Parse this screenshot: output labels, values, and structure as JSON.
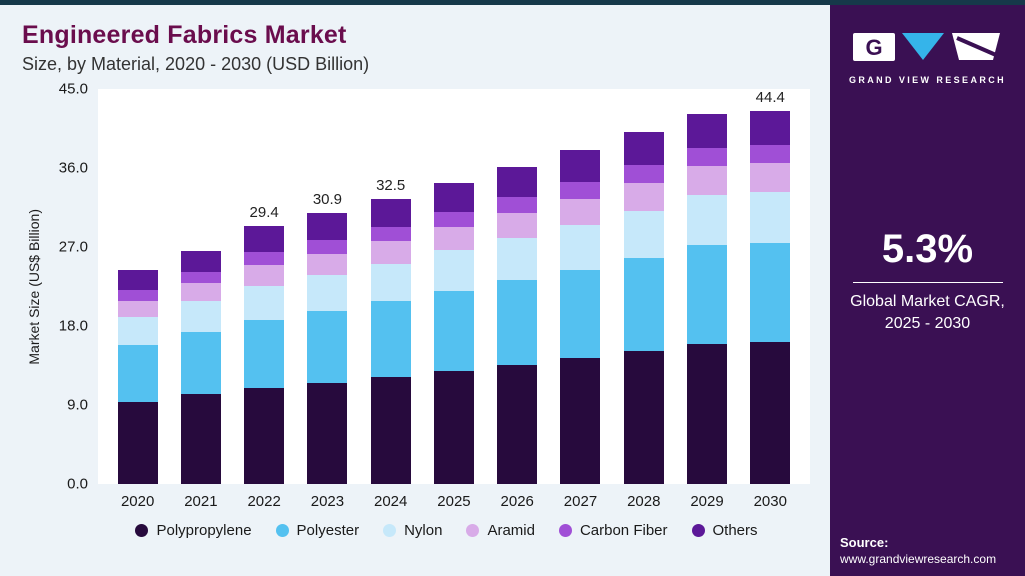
{
  "header": {
    "title": "Engineered Fabrics Market",
    "subtitle": "Size, by Material, 2020 - 2030 (USD Billion)"
  },
  "colors": {
    "title_accent": "#6a0d4d",
    "sidebar_bg": "#3a1053",
    "top_border": "#16394a",
    "panel_bg": "#edf3f8",
    "plot_bg": "#ffffff",
    "logo_triangle": "#35b4ea"
  },
  "chart_data": {
    "type": "bar",
    "stacked": true,
    "title": "Engineered Fabrics Market Size, by Material, 2020 - 2030 (USD Billion)",
    "xlabel": "",
    "ylabel": "Market Size (US$ Billion)",
    "ylim": [
      0,
      45
    ],
    "y_ticks": [
      0,
      9,
      18,
      27,
      36,
      45
    ],
    "grid": false,
    "legend_position": "bottom",
    "categories": [
      "2020",
      "2021",
      "2022",
      "2023",
      "2024",
      "2025",
      "2026",
      "2027",
      "2028",
      "2029",
      "2030"
    ],
    "series": [
      {
        "name": "Polypropylene",
        "color": "#270a3d",
        "values": [
          9.3,
          10.2,
          10.9,
          11.5,
          12.2,
          12.9,
          13.6,
          14.3,
          15.1,
          16.0,
          16.9
        ]
      },
      {
        "name": "Polyester",
        "color": "#54c1f0",
        "values": [
          6.5,
          7.1,
          7.8,
          8.2,
          8.6,
          9.1,
          9.6,
          10.1,
          10.6,
          11.2,
          11.8
        ]
      },
      {
        "name": "Nylon",
        "color": "#c6e8fa",
        "values": [
          3.2,
          3.5,
          3.9,
          4.1,
          4.3,
          4.6,
          4.8,
          5.1,
          5.4,
          5.7,
          6.0
        ]
      },
      {
        "name": "Aramid",
        "color": "#d8abe8",
        "values": [
          1.9,
          2.1,
          2.3,
          2.4,
          2.6,
          2.7,
          2.9,
          3.0,
          3.2,
          3.3,
          3.5
        ]
      },
      {
        "name": "Carbon Fiber",
        "color": "#a04fd6",
        "values": [
          1.2,
          1.3,
          1.5,
          1.6,
          1.6,
          1.7,
          1.8,
          1.9,
          2.0,
          2.1,
          2.2
        ]
      },
      {
        "name": "Others",
        "color": "#5c1898",
        "values": [
          2.3,
          2.4,
          3.0,
          3.1,
          3.2,
          3.3,
          3.4,
          3.6,
          3.8,
          3.9,
          4.0
        ]
      }
    ],
    "bar_total_labels": {
      "2022": "29.4",
      "2023": "30.9",
      "2024": "32.5",
      "2030": "44.4"
    }
  },
  "sidebar": {
    "logo_text": "GRAND VIEW RESEARCH",
    "cagr_value": "5.3%",
    "cagr_label_line1": "Global Market CAGR,",
    "cagr_label_line2": "2025 - 2030",
    "source_label": "Source:",
    "source_url": "www.grandviewresearch.com"
  }
}
